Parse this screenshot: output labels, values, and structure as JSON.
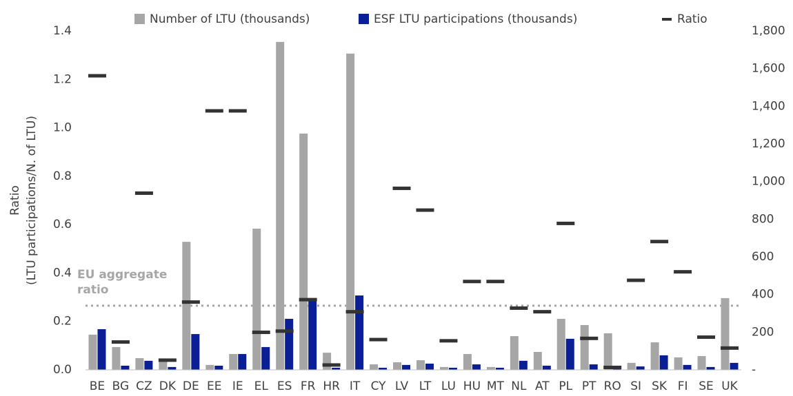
{
  "chart_data": {
    "type": "bar",
    "ylabel": [
      "Ratio",
      "(LTU participations/N. of LTU)"
    ],
    "legend": "top",
    "categories": [
      "BE",
      "BG",
      "CZ",
      "DK",
      "DE",
      "EE",
      "IE",
      "EL",
      "ES",
      "FR",
      "HR",
      "IT",
      "CY",
      "LV",
      "LT",
      "LU",
      "HU",
      "MT",
      "NL",
      "AT",
      "PL",
      "PT",
      "RO",
      "SI",
      "SK",
      "FI",
      "SE",
      "UK"
    ],
    "series": [
      {
        "name": "Number of LTU (thousands)",
        "color": "#a6a6a6",
        "axis": "y2",
        "type": "bar",
        "values": [
          187,
          121,
          62,
          44,
          680,
          26,
          84,
          750,
          1742,
          1255,
          91,
          1680,
          29,
          40,
          51,
          15,
          84,
          15,
          179,
          95,
          271,
          238,
          194,
          37,
          146,
          66,
          73,
          381
        ]
      },
      {
        "name": "ESF LTU participations (thousands)",
        "color": "#0a1f96",
        "axis": "y2",
        "type": "bar",
        "values": [
          216,
          22,
          48,
          15,
          190,
          22,
          84,
          121,
          271,
          377,
          11,
          395,
          11,
          26,
          33,
          11,
          29,
          11,
          48,
          22,
          165,
          29,
          7,
          18,
          77,
          26,
          15,
          37
        ]
      },
      {
        "name": "Ratio",
        "color": "#333333",
        "axis": "y",
        "type": "marker",
        "values": [
          1.215,
          0.115,
          0.73,
          0.04,
          0.28,
          1.07,
          1.07,
          0.155,
          0.16,
          0.29,
          0.02,
          0.24,
          0.125,
          0.75,
          0.66,
          0.12,
          0.365,
          0.365,
          0.255,
          0.24,
          0.605,
          0.13,
          0.01,
          0.37,
          0.53,
          0.405,
          0.135,
          0.09
        ]
      }
    ],
    "annotation": {
      "text": "EU aggregate ratio",
      "value": 0.265,
      "color": "#a6a6a6"
    },
    "ylim": [
      0,
      1.4
    ],
    "yticks": [
      {
        "value": 0,
        "label": "0.0"
      },
      0.2,
      0.4,
      0.6,
      0.8,
      {
        "value": 1,
        "label": "1.0"
      },
      1.2,
      1.4
    ],
    "y2lim": [
      0,
      1800
    ],
    "y2ticks": [
      {
        "value": 0,
        "label": "-"
      },
      200,
      400,
      600,
      800,
      {
        "value": 1000,
        "label": "1,000"
      },
      {
        "value": 1200,
        "label": "1,200"
      },
      {
        "value": 1400,
        "label": "1,400"
      },
      {
        "value": 1600,
        "label": "1,600"
      },
      {
        "value": 1800,
        "label": "1,800"
      }
    ],
    "grid": false
  }
}
